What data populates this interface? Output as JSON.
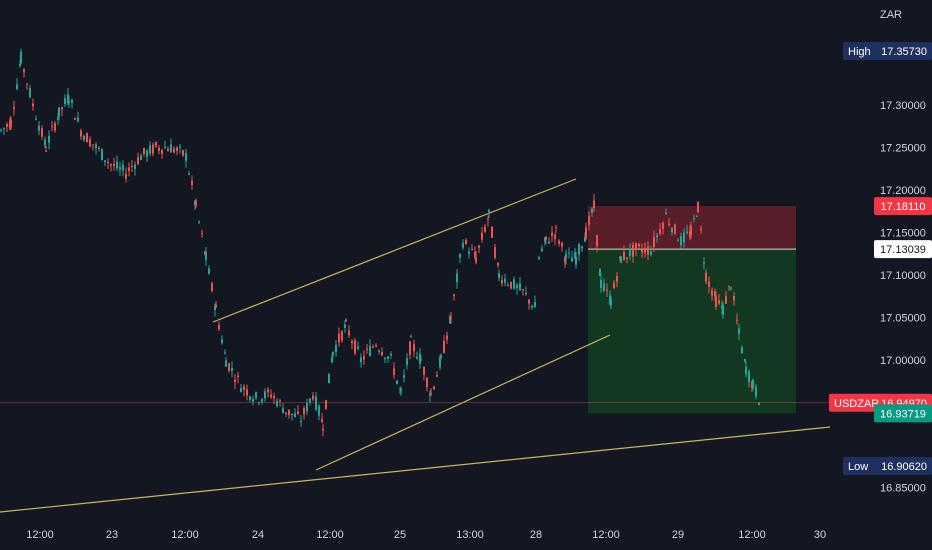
{
  "currency_label": "ZAR",
  "colors": {
    "background": "#131722",
    "text": "#d1d4dc",
    "up": "#26a69a",
    "down": "#ef5350",
    "trendline": "#c9b458",
    "stop_zone": "#5c1f28",
    "target_zone": "#133a22",
    "high_low_tag": "#1e3060",
    "price_tag_red": "#f23645",
    "price_tag_green": "#089981",
    "entry_tag": "#ffffff"
  },
  "chart_data": {
    "type": "candlestick",
    "symbol": "USDZAR",
    "y_unit": "ZAR",
    "ylim": [
      16.85,
      17.39
    ],
    "y_ticks": [
      "17.30000",
      "17.25000",
      "17.20000",
      "17.15000",
      "17.10000",
      "17.05000",
      "17.00000",
      "16.85000"
    ],
    "x_ticks": [
      "12:00",
      "23",
      "12:00",
      "24",
      "12:00",
      "25",
      "13:00",
      "28",
      "12:00",
      "29",
      "12:00",
      "30"
    ],
    "price_path": [
      {
        "x": 0,
        "y": 17.27
      },
      {
        "x": 10,
        "y": 17.28
      },
      {
        "x": 20,
        "y": 17.355
      },
      {
        "x": 32,
        "y": 17.3
      },
      {
        "x": 45,
        "y": 17.25
      },
      {
        "x": 58,
        "y": 17.29
      },
      {
        "x": 68,
        "y": 17.31
      },
      {
        "x": 80,
        "y": 17.27
      },
      {
        "x": 95,
        "y": 17.25
      },
      {
        "x": 110,
        "y": 17.23
      },
      {
        "x": 125,
        "y": 17.22
      },
      {
        "x": 140,
        "y": 17.24
      },
      {
        "x": 155,
        "y": 17.25
      },
      {
        "x": 170,
        "y": 17.25
      },
      {
        "x": 185,
        "y": 17.24
      },
      {
        "x": 195,
        "y": 17.18
      },
      {
        "x": 205,
        "y": 17.12
      },
      {
        "x": 215,
        "y": 17.06
      },
      {
        "x": 225,
        "y": 17.0
      },
      {
        "x": 240,
        "y": 16.97
      },
      {
        "x": 255,
        "y": 16.955
      },
      {
        "x": 270,
        "y": 16.96
      },
      {
        "x": 285,
        "y": 16.94
      },
      {
        "x": 300,
        "y": 16.93
      },
      {
        "x": 312,
        "y": 16.96
      },
      {
        "x": 322,
        "y": 16.925
      },
      {
        "x": 332,
        "y": 17.01
      },
      {
        "x": 345,
        "y": 17.04
      },
      {
        "x": 360,
        "y": 17.0
      },
      {
        "x": 375,
        "y": 17.02
      },
      {
        "x": 390,
        "y": 17.0
      },
      {
        "x": 400,
        "y": 16.96
      },
      {
        "x": 410,
        "y": 17.02
      },
      {
        "x": 420,
        "y": 17.0
      },
      {
        "x": 430,
        "y": 16.96
      },
      {
        "x": 440,
        "y": 17.0
      },
      {
        "x": 450,
        "y": 17.05
      },
      {
        "x": 462,
        "y": 17.14
      },
      {
        "x": 475,
        "y": 17.12
      },
      {
        "x": 488,
        "y": 17.17
      },
      {
        "x": 498,
        "y": 17.1
      },
      {
        "x": 510,
        "y": 17.09
      },
      {
        "x": 522,
        "y": 17.08
      },
      {
        "x": 535,
        "y": 17.06
      }
    ],
    "price_path_2": [
      {
        "x": 538,
        "y": 17.12
      },
      {
        "x": 545,
        "y": 17.14
      },
      {
        "x": 555,
        "y": 17.15
      },
      {
        "x": 565,
        "y": 17.12
      },
      {
        "x": 575,
        "y": 17.12
      },
      {
        "x": 585,
        "y": 17.15
      },
      {
        "x": 593,
        "y": 17.18
      },
      {
        "x": 600,
        "y": 17.09
      },
      {
        "x": 610,
        "y": 17.07
      },
      {
        "x": 620,
        "y": 17.12
      },
      {
        "x": 635,
        "y": 17.13
      },
      {
        "x": 650,
        "y": 17.13
      },
      {
        "x": 665,
        "y": 17.17
      },
      {
        "x": 680,
        "y": 17.14
      },
      {
        "x": 690,
        "y": 17.15
      },
      {
        "x": 697,
        "y": 17.18
      },
      {
        "x": 705,
        "y": 17.1
      },
      {
        "x": 715,
        "y": 17.07
      },
      {
        "x": 722,
        "y": 17.06
      },
      {
        "x": 730,
        "y": 17.09
      },
      {
        "x": 738,
        "y": 17.03
      },
      {
        "x": 745,
        "y": 16.99
      },
      {
        "x": 752,
        "y": 16.97
      },
      {
        "x": 760,
        "y": 16.95
      }
    ],
    "position": {
      "entry": 17.13039,
      "stop": 17.1811,
      "target": 16.93719
    },
    "last_price": 16.9497,
    "high": 17.3573,
    "low": 16.9062,
    "labels": {
      "high": "High",
      "high_value": "17.35730",
      "low": "Low",
      "low_value": "16.90620",
      "last_symbol": "USDZAR",
      "last_value": "16.94970",
      "stop_value": "17.18110",
      "entry_value": "17.13039",
      "target_value": "16.93719"
    }
  }
}
